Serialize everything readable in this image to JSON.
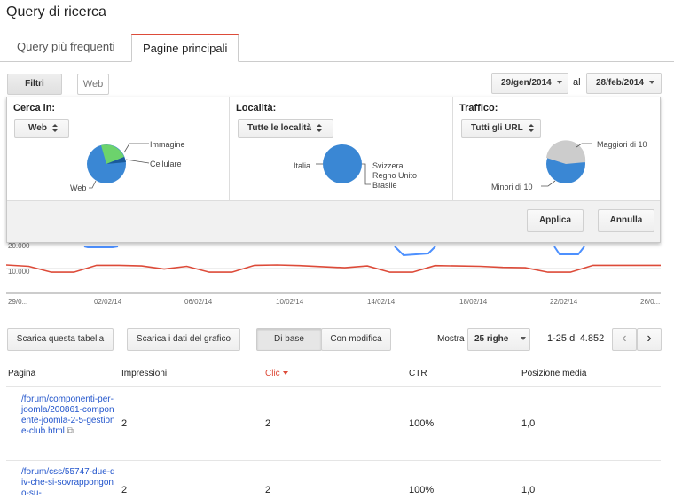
{
  "header": {
    "title": "Query di ricerca"
  },
  "tabs": [
    {
      "label": "Query più frequenti",
      "active": false
    },
    {
      "label": "Pagine principali",
      "active": true
    }
  ],
  "toolbar": {
    "filters_label": "Filtri",
    "web_chip": "Web",
    "date_from": "29/gen/2014",
    "date_sep": "al",
    "date_to": "28/feb/2014"
  },
  "filters": {
    "search_in": {
      "label": "Cerca in:",
      "value": "Web",
      "pie_labels": [
        "Immagine",
        "Cellulare",
        "Web"
      ]
    },
    "location": {
      "label": "Località:",
      "value": "Tutte le località",
      "pie_labels": [
        "Italia",
        "Svizzera",
        "Regno Unito",
        "Brasile"
      ]
    },
    "traffic": {
      "label": "Traffico:",
      "value": "Tutti gli URL",
      "pie_labels": [
        "Maggiori di 10",
        "Minori di 10"
      ]
    },
    "apply_label": "Applica",
    "cancel_label": "Annulla"
  },
  "chart_data": {
    "type": "line",
    "y_ticks": [
      "20.000",
      "10.000"
    ],
    "x_ticks": [
      "29/0...",
      "02/02/14",
      "06/02/14",
      "10/02/14",
      "14/02/14",
      "18/02/14",
      "22/02/14",
      "26/0..."
    ],
    "series": [
      {
        "color": "#dd4b39",
        "values": [
          13600,
          13200,
          11500,
          11500,
          13500,
          13500,
          13300,
          12400,
          13200,
          11500,
          11500,
          13500,
          13600,
          13400,
          13100,
          12800,
          13300,
          11500,
          11500,
          13400,
          13300,
          13200,
          12900,
          12800,
          11500,
          11500,
          13500,
          13500,
          13500,
          13500
        ]
      }
    ],
    "colors": {
      "clicks": "#dd4b39",
      "impressions": "#4d90fe"
    }
  },
  "actions": {
    "download_table": "Scarica questa tabella",
    "download_chart": "Scarica i dati del grafico",
    "basic": "Di base",
    "with_changes": "Con modifica",
    "show_label": "Mostra",
    "rows_value": "25 righe",
    "pagination": "1-25 di 4.852"
  },
  "table": {
    "headers": [
      "Pagina",
      "Impressioni",
      "Clic",
      "CTR",
      "Posizione media"
    ],
    "rows": [
      {
        "page": "/forum/componenti-per-joomla/200861-componente-joomla-2-5-gestione-club.html",
        "impressions": "2",
        "clicks": "2",
        "ctr": "100%",
        "position": "1,0"
      },
      {
        "page": "/forum/css/55747-due-div-che-si-sovrappongono-su-",
        "impressions": "2",
        "clicks": "2",
        "ctr": "100%",
        "position": "1,0"
      }
    ]
  }
}
